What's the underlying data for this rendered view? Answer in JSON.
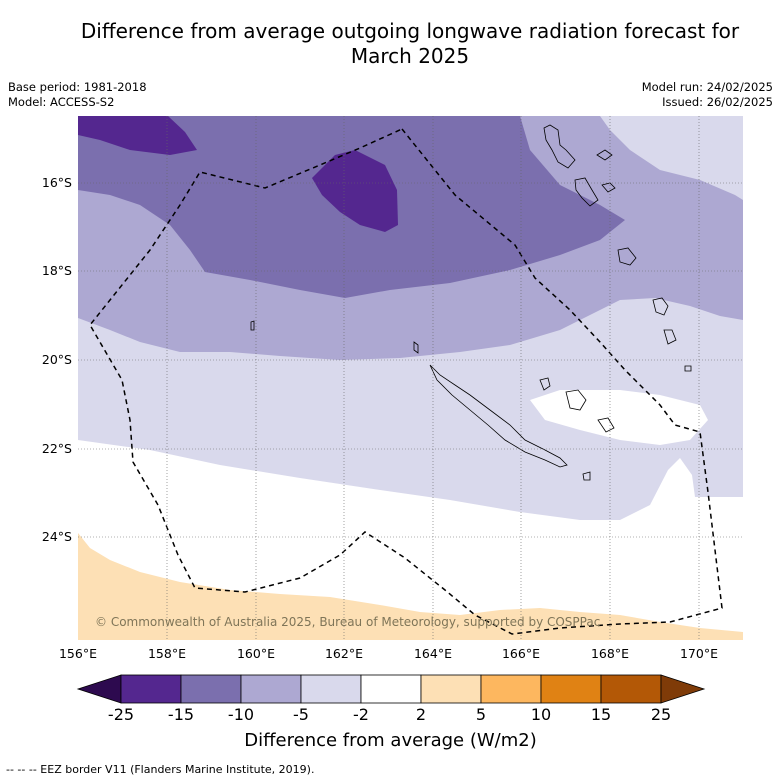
{
  "title_line1": "Difference from average outgoing longwave radiation forecast for",
  "title_line2": "March 2025",
  "base_period": "Base period: 1981-2018",
  "model": "Model: ACCESS-S2",
  "model_run": "Model run: 24/02/2025",
  "issued": "Issued: 26/02/2025",
  "lat_ticks": [
    "16°S",
    "18°S",
    "20°S",
    "22°S",
    "24°S"
  ],
  "lon_ticks": [
    "156°E",
    "158°E",
    "160°E",
    "162°E",
    "164°E",
    "166°E",
    "168°E",
    "170°E"
  ],
  "colorbar": {
    "ticks": [
      "-25",
      "-15",
      "-10",
      "-5",
      "-2",
      "2",
      "5",
      "10",
      "15",
      "25"
    ],
    "colors": {
      "below_min": "#2d0a4f",
      "n25_15": "#54278f",
      "n15_10": "#7b6fae",
      "n10_5": "#ada8d2",
      "n5_2": "#d9d9ec",
      "n2_2": "#ffffff",
      "p2_5": "#fde0b5",
      "p5_10": "#fdb75f",
      "p10_15": "#e08214",
      "p15_25": "#b35806",
      "above_max": "#7f3b08"
    },
    "label": "Difference from average (W/m2)"
  },
  "copyright": "© Commonwealth of Australia 2025, Bureau of Meteorology, supported by COSPPac",
  "footer": "--  --  -- EEZ border V11 (Flanders Marine Institute, 2019)."
}
